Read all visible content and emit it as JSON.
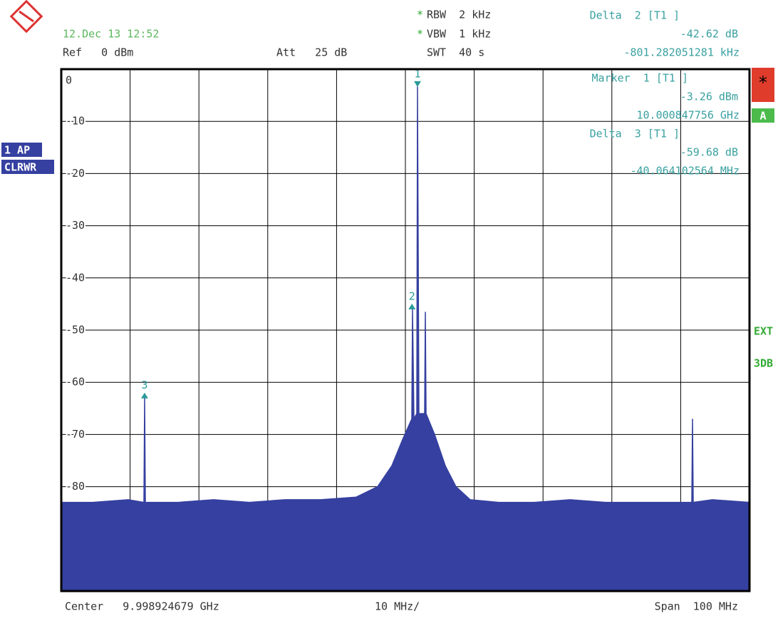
{
  "header": {
    "datetime": "12.Dec 13 12:52",
    "rbw": "RBW  2 kHz",
    "vbw": "VBW  1 kHz",
    "rbw_flag": "*",
    "vbw_flag": "*",
    "ref": "Ref   0 dBm",
    "att": "Att   25 dB",
    "swt": "SWT  40 s"
  },
  "marker_info": [
    {
      "title": "Delta  2 [T1 ]",
      "level": "-42.62 dB",
      "freq": "-801.282051281 kHz"
    },
    {
      "title": "Marker  1 [T1 ]",
      "level": "-3.26 dBm",
      "freq": "10.000847756 GHz"
    },
    {
      "title": "Delta  3 [T1 ]",
      "level": "-59.68 dB",
      "freq": "-40.064102564 MHz"
    }
  ],
  "side": {
    "trace_mode": "1 AP",
    "detector": "CLRWR",
    "star": "*",
    "a": "A",
    "ext": "EXT",
    "db": "3DB"
  },
  "footer": {
    "center": "Center   9.998924679 GHz",
    "div": "10 MHz/",
    "span": "Span  100 MHz"
  },
  "chart_data": {
    "type": "line",
    "color": "#3540a0",
    "marker_color": "#2a9a9a",
    "xlim": [
      -50,
      50
    ],
    "ylim": [
      -100,
      0
    ],
    "yticks": [
      0,
      -10,
      -20,
      -30,
      -40,
      -50,
      -60,
      -70,
      -80
    ],
    "grid": true,
    "x": [
      -50,
      -45.45,
      -40.27,
      -37.99,
      -37.89,
      -37.78,
      -33.02,
      -27.85,
      -22.67,
      -17.49,
      -12.32,
      -7.14,
      -4.04,
      -1.97,
      -0.41,
      0.93,
      1.04,
      1.24,
      1.66,
      1.76,
      1.97,
      2.8,
      2.9,
      3.0,
      4.24,
      5.8,
      7.35,
      9.42,
      13.56,
      18.74,
      23.91,
      29.09,
      34.26,
      39.44,
      41.61,
      41.72,
      41.82,
      44.62,
      50
    ],
    "values": [
      -83,
      -83,
      -82.5,
      -83,
      -63,
      -83,
      -83,
      -82.5,
      -83,
      -82.5,
      -82.5,
      -82,
      -80,
      -76,
      -71,
      -67,
      -46,
      -67,
      -66,
      -3.3,
      -66,
      -66,
      -46.5,
      -66,
      -70,
      -76,
      -80,
      -82.5,
      -83,
      -83,
      -82.5,
      -83,
      -83,
      -83,
      -83,
      -67,
      -83,
      -82.5,
      -83
    ],
    "markers": [
      {
        "label": "1",
        "x": 1.76,
        "y": -3.26
      },
      {
        "label": "2",
        "x": 0.96,
        "y": -45.88
      },
      {
        "label": "3",
        "x": -37.89,
        "y": -62.94
      }
    ]
  }
}
